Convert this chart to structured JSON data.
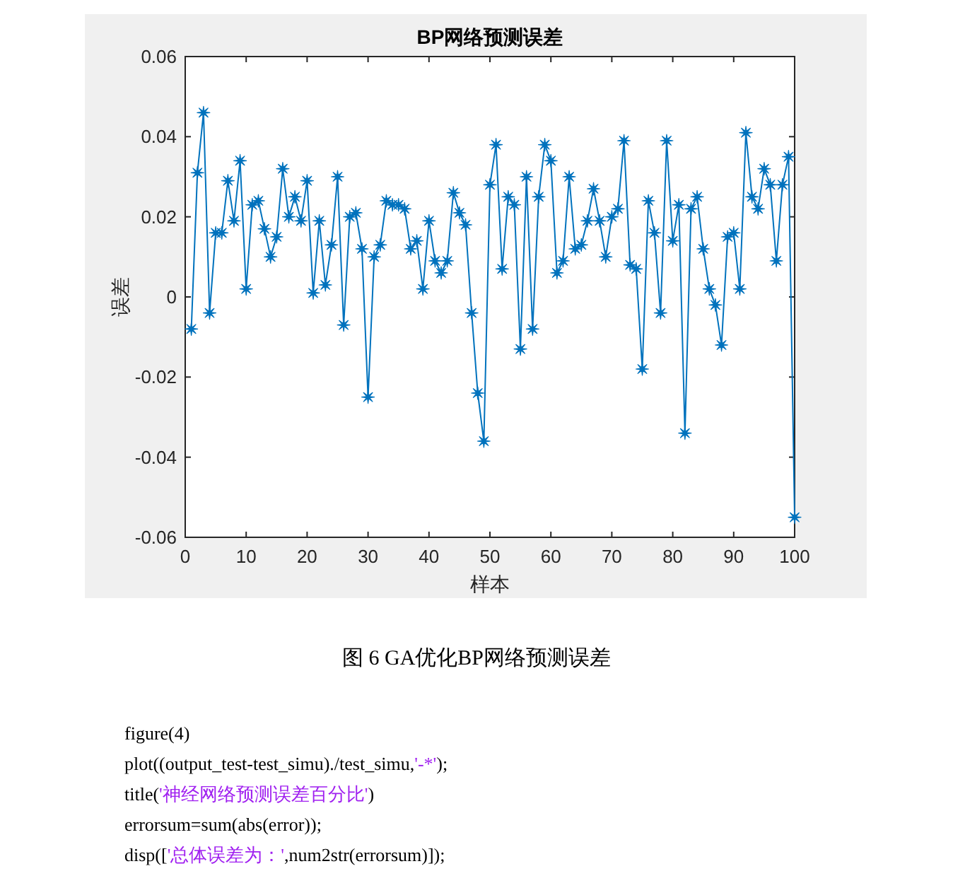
{
  "chart_data": {
    "type": "line",
    "title": "BP网络预测误差",
    "xlabel": "样本",
    "ylabel": "误差",
    "x": [
      1,
      2,
      3,
      4,
      5,
      6,
      7,
      8,
      9,
      10,
      11,
      12,
      13,
      14,
      15,
      16,
      17,
      18,
      19,
      20,
      21,
      22,
      23,
      24,
      25,
      26,
      27,
      28,
      29,
      30,
      31,
      32,
      33,
      34,
      35,
      36,
      37,
      38,
      39,
      40,
      41,
      42,
      43,
      44,
      45,
      46,
      47,
      48,
      49,
      50,
      51,
      52,
      53,
      54,
      55,
      56,
      57,
      58,
      59,
      60,
      61,
      62,
      63,
      64,
      65,
      66,
      67,
      68,
      69,
      70,
      71,
      72,
      73,
      74,
      75,
      76,
      77,
      78,
      79,
      80,
      81,
      82,
      83,
      84,
      85,
      86,
      87,
      88,
      89,
      90,
      91,
      92,
      93,
      94,
      95,
      96,
      97,
      98,
      99,
      100
    ],
    "series": [
      {
        "color": "#0072bd",
        "values": [
          -0.008,
          0.031,
          0.046,
          -0.004,
          0.016,
          0.016,
          0.029,
          0.019,
          0.034,
          0.002,
          0.023,
          0.024,
          0.017,
          0.01,
          0.015,
          0.032,
          0.02,
          0.025,
          0.019,
          0.029,
          0.001,
          0.019,
          0.003,
          0.013,
          0.03,
          -0.007,
          0.02,
          0.021,
          0.012,
          -0.025,
          0.01,
          0.013,
          0.024,
          0.023,
          0.023,
          0.022,
          0.012,
          0.014,
          0.002,
          0.019,
          0.009,
          0.006,
          0.009,
          0.026,
          0.021,
          0.018,
          -0.004,
          -0.024,
          -0.036,
          0.028,
          0.038,
          0.007,
          0.025,
          0.023,
          -0.013,
          0.03,
          -0.008,
          0.025,
          0.038,
          0.034,
          0.006,
          0.009,
          0.03,
          0.012,
          0.013,
          0.019,
          0.027,
          0.019,
          0.01,
          0.02,
          0.022,
          0.039,
          0.008,
          0.007,
          -0.018,
          0.024,
          0.016,
          -0.004,
          0.039,
          0.014,
          0.023,
          -0.034,
          0.022,
          0.025,
          0.012,
          0.002,
          -0.002,
          -0.012,
          0.015,
          0.016,
          0.002,
          0.041,
          0.025,
          0.022,
          0.032,
          0.028,
          0.009,
          0.028,
          0.035,
          -0.055
        ]
      }
    ],
    "marker": "star",
    "line_style": "solid",
    "grid": false,
    "xlim": [
      0,
      100
    ],
    "xticks": [
      0,
      10,
      20,
      30,
      40,
      50,
      60,
      70,
      80,
      90,
      100
    ],
    "ylim": [
      -0.06,
      0.06
    ],
    "yticks": [
      -0.06,
      -0.04,
      -0.02,
      0,
      0.02,
      0.04,
      0.06
    ],
    "annotations": [
      "图 6 GA优化BP网络预测误差",
      "figure(4)",
      "plot((output_test-test_simu)./test_simu,'-*');",
      "title('神经网络预测误差百分比')",
      "errorsum=sum(abs(error));",
      "disp(['总体误差为：',num2str(errorsum)]);"
    ]
  }
}
